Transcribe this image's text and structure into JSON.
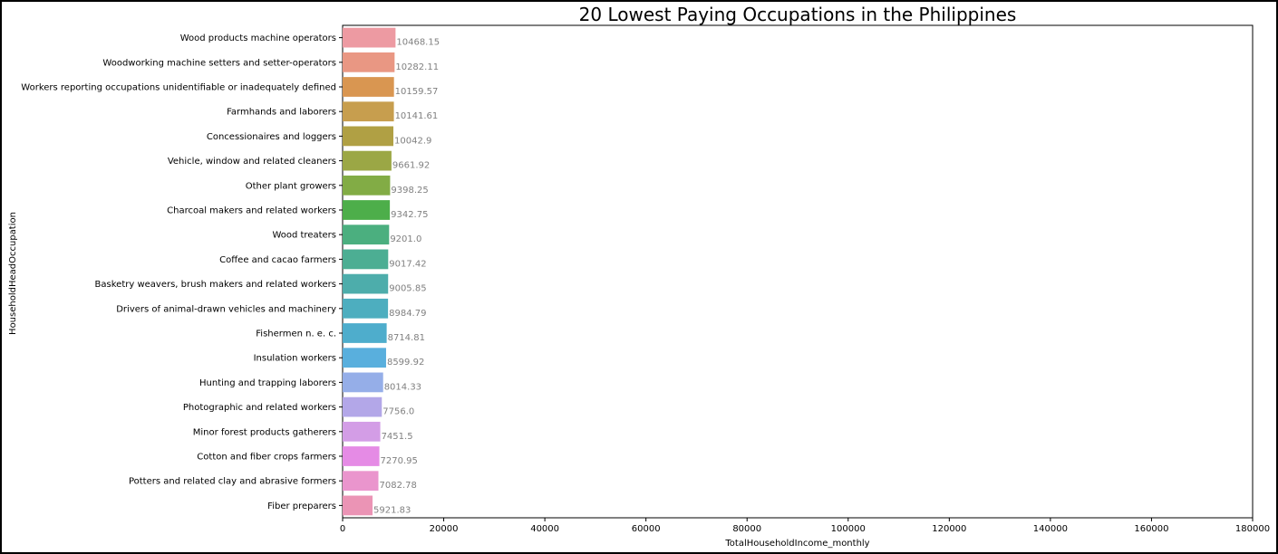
{
  "chart_data": {
    "type": "bar",
    "orientation": "horizontal",
    "title": "20 Lowest Paying Occupations in the Philippines",
    "xlabel": "TotalHouseholdIncome_monthly",
    "ylabel": "HouseholdHeadOccupation",
    "xlim": [
      0,
      180000
    ],
    "xticks": [
      0,
      20000,
      40000,
      60000,
      80000,
      100000,
      120000,
      140000,
      160000,
      180000
    ],
    "grid": false,
    "categories": [
      "Wood products machine operators",
      "Woodworking machine setters and setter-operators",
      "Workers reporting occupations unidentifiable or inadequately defined",
      "Farmhands and laborers",
      "Concessionaires and loggers",
      "Vehicle, window and related cleaners",
      "Other plant growers",
      "Charcoal makers and related workers",
      "Wood treaters",
      "Coffee and cacao farmers",
      "Basketry weavers, brush makers and related workers",
      "Drivers of animal-drawn vehicles and machinery",
      "Fishermen n. e. c.",
      "Insulation workers",
      "Hunting and trapping laborers",
      "Photographic and related workers",
      "Minor forest products gatherers",
      "Cotton and fiber crops farmers",
      "Potters and related clay and abrasive formers",
      "Fiber preparers"
    ],
    "values": [
      10468.15,
      10282.11,
      10159.57,
      10141.61,
      10042.9,
      9661.92,
      9398.25,
      9342.75,
      9201.0,
      9017.42,
      9005.85,
      8984.79,
      8714.81,
      8599.92,
      8014.33,
      7756.0,
      7451.5,
      7270.95,
      7082.78,
      5921.83
    ],
    "value_labels": [
      "10468.15",
      "10282.11",
      "10159.57",
      "10141.61",
      "10042.9",
      "9661.92",
      "9398.25",
      "9342.75",
      "9201.0",
      "9017.42",
      "9005.85",
      "8984.79",
      "8714.81",
      "8599.92",
      "8014.33",
      "7756.0",
      "7451.5",
      "7270.95",
      "7082.78",
      "5921.83"
    ],
    "colors": [
      "#ed9aa2",
      "#e99783",
      "#d99651",
      "#c79e4e",
      "#b0a044",
      "#9ba745",
      "#82ac45",
      "#4dae4a",
      "#4baf7f",
      "#4cae93",
      "#4dadab",
      "#4daebf",
      "#4eadcc",
      "#59afdd",
      "#95aee8",
      "#b3a7e8",
      "#d39de6",
      "#e58be5",
      "#ea95cd",
      "#eb94b5"
    ]
  }
}
